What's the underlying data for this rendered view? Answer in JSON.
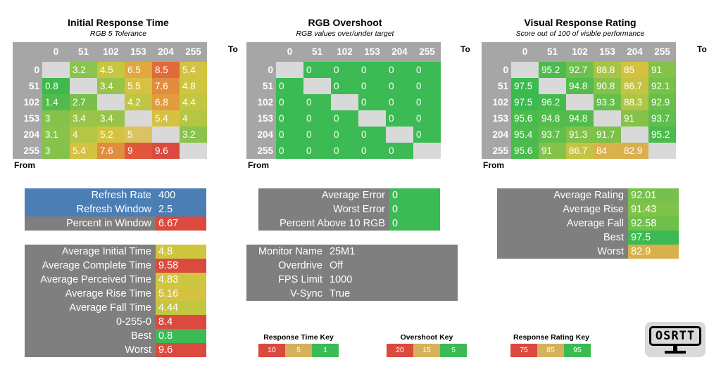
{
  "sections": [
    {
      "title": "Initial Response Time",
      "subtitle": "RGB 5 Tolerance",
      "headers": [
        "0",
        "51",
        "102",
        "153",
        "204",
        "255"
      ],
      "rows": [
        {
          "label": "0",
          "cells": [
            {
              "v": "",
              "c": "#d9d9d9"
            },
            {
              "v": "3.2",
              "c": "#8ac34d"
            },
            {
              "v": "4.5",
              "c": "#c8c63f"
            },
            {
              "v": "6.5",
              "c": "#e0a83e"
            },
            {
              "v": "8.5",
              "c": "#e06a3c"
            },
            {
              "v": "5.4",
              "c": "#d5c240"
            }
          ]
        },
        {
          "label": "51",
          "cells": [
            {
              "v": "0.8",
              "c": "#3fb84e"
            },
            {
              "v": "",
              "c": "#d9d9d9"
            },
            {
              "v": "3.4",
              "c": "#98c449"
            },
            {
              "v": "5.5",
              "c": "#d8c041"
            },
            {
              "v": "7.6",
              "c": "#e08d3f"
            },
            {
              "v": "4.8",
              "c": "#cfc640"
            }
          ]
        },
        {
          "label": "102",
          "cells": [
            {
              "v": "1.4",
              "c": "#52bb4d"
            },
            {
              "v": "2.7",
              "c": "#78c04c"
            },
            {
              "v": "",
              "c": "#d9d9d9"
            },
            {
              "v": "4.2",
              "c": "#bfc643"
            },
            {
              "v": "6.8",
              "c": "#e09c3f"
            },
            {
              "v": "4.4",
              "c": "#c3c641"
            }
          ]
        },
        {
          "label": "153",
          "cells": [
            {
              "v": "3",
              "c": "#85c24c"
            },
            {
              "v": "3.4",
              "c": "#98c449"
            },
            {
              "v": "3.4",
              "c": "#98c449"
            },
            {
              "v": "",
              "c": "#d9d9d9"
            },
            {
              "v": "5.4",
              "c": "#d5c240"
            },
            {
              "v": "4",
              "c": "#b5c544"
            }
          ]
        },
        {
          "label": "204",
          "cells": [
            {
              "v": "3.1",
              "c": "#88c34c"
            },
            {
              "v": "4",
              "c": "#b5c544"
            },
            {
              "v": "5.2",
              "c": "#d3c340"
            },
            {
              "v": "5",
              "c": "#dbc262"
            },
            {
              "v": "",
              "c": "#d9d9d9"
            },
            {
              "v": "3.2",
              "c": "#8ac34d"
            }
          ]
        },
        {
          "label": "255",
          "cells": [
            {
              "v": "3",
              "c": "#85c24c"
            },
            {
              "v": "5.4",
              "c": "#d5c240"
            },
            {
              "v": "7.6",
              "c": "#e08d3f"
            },
            {
              "v": "9",
              "c": "#e0573c"
            },
            {
              "v": "9.6",
              "c": "#da4a3e"
            },
            {
              "v": "",
              "c": "#d9d9d9"
            }
          ]
        }
      ]
    },
    {
      "title": "RGB Overshoot",
      "subtitle": "RGB values over/under target",
      "headers": [
        "0",
        "51",
        "102",
        "153",
        "204",
        "255"
      ],
      "rows": [
        {
          "label": "0",
          "cells": [
            {
              "v": "",
              "c": "#d9d9d9"
            },
            {
              "v": "0",
              "c": "#3cba54"
            },
            {
              "v": "0",
              "c": "#3cba54"
            },
            {
              "v": "0",
              "c": "#3cba54"
            },
            {
              "v": "0",
              "c": "#3cba54"
            },
            {
              "v": "0",
              "c": "#3cba54"
            }
          ]
        },
        {
          "label": "51",
          "cells": [
            {
              "v": "0",
              "c": "#3cba54"
            },
            {
              "v": "",
              "c": "#d9d9d9"
            },
            {
              "v": "0",
              "c": "#3cba54"
            },
            {
              "v": "0",
              "c": "#3cba54"
            },
            {
              "v": "0",
              "c": "#3cba54"
            },
            {
              "v": "0",
              "c": "#3cba54"
            }
          ]
        },
        {
          "label": "102",
          "cells": [
            {
              "v": "0",
              "c": "#3cba54"
            },
            {
              "v": "0",
              "c": "#3cba54"
            },
            {
              "v": "",
              "c": "#d9d9d9"
            },
            {
              "v": "0",
              "c": "#3cba54"
            },
            {
              "v": "0",
              "c": "#3cba54"
            },
            {
              "v": "0",
              "c": "#3cba54"
            }
          ]
        },
        {
          "label": "153",
          "cells": [
            {
              "v": "0",
              "c": "#3cba54"
            },
            {
              "v": "0",
              "c": "#3cba54"
            },
            {
              "v": "0",
              "c": "#3cba54"
            },
            {
              "v": "",
              "c": "#d9d9d9"
            },
            {
              "v": "0",
              "c": "#3cba54"
            },
            {
              "v": "0",
              "c": "#3cba54"
            }
          ]
        },
        {
          "label": "204",
          "cells": [
            {
              "v": "0",
              "c": "#3cba54"
            },
            {
              "v": "0",
              "c": "#3cba54"
            },
            {
              "v": "0",
              "c": "#3cba54"
            },
            {
              "v": "0",
              "c": "#3cba54"
            },
            {
              "v": "",
              "c": "#d9d9d9"
            },
            {
              "v": "0",
              "c": "#3cba54"
            }
          ]
        },
        {
          "label": "255",
          "cells": [
            {
              "v": "0",
              "c": "#3cba54"
            },
            {
              "v": "0",
              "c": "#3cba54"
            },
            {
              "v": "0",
              "c": "#3cba54"
            },
            {
              "v": "0",
              "c": "#3cba54"
            },
            {
              "v": "0",
              "c": "#3cba54"
            },
            {
              "v": "",
              "c": "#d9d9d9"
            }
          ]
        }
      ]
    },
    {
      "title": "Visual Response Rating",
      "subtitle": "Score out of 100 of visible performance",
      "headers": [
        "0",
        "51",
        "102",
        "153",
        "204",
        "255"
      ],
      "rows": [
        {
          "label": "0",
          "cells": [
            {
              "v": "",
              "c": "#d9d9d9"
            },
            {
              "v": "95.2",
              "c": "#4cbb4c"
            },
            {
              "v": "92.7",
              "c": "#6cc04b"
            },
            {
              "v": "88.8",
              "c": "#a8c446"
            },
            {
              "v": "85",
              "c": "#d4c140"
            },
            {
              "v": "91",
              "c": "#84c24a"
            }
          ]
        },
        {
          "label": "51",
          "cells": [
            {
              "v": "97.5",
              "c": "#3cb94f"
            },
            {
              "v": "",
              "c": "#d9d9d9"
            },
            {
              "v": "94.8",
              "c": "#52bc4c"
            },
            {
              "v": "90.8",
              "c": "#86c24a"
            },
            {
              "v": "86.7",
              "c": "#c4c443"
            },
            {
              "v": "92.1",
              "c": "#76c14b"
            }
          ]
        },
        {
          "label": "102",
          "cells": [
            {
              "v": "97.5",
              "c": "#3cb94f"
            },
            {
              "v": "96.2",
              "c": "#45ba4d"
            },
            {
              "v": "",
              "c": "#d9d9d9"
            },
            {
              "v": "93.3",
              "c": "#66bf4b"
            },
            {
              "v": "88.3",
              "c": "#aec545"
            },
            {
              "v": "92.9",
              "c": "#6abf4b"
            }
          ]
        },
        {
          "label": "153",
          "cells": [
            {
              "v": "95.6",
              "c": "#4abb4c"
            },
            {
              "v": "94.8",
              "c": "#52bc4c"
            },
            {
              "v": "94.8",
              "c": "#52bc4c"
            },
            {
              "v": "",
              "c": "#d9d9d9"
            },
            {
              "v": "91",
              "c": "#84c24a"
            },
            {
              "v": "93.7",
              "c": "#5fbe4c"
            }
          ]
        },
        {
          "label": "204",
          "cells": [
            {
              "v": "95.4",
              "c": "#4bbb4c"
            },
            {
              "v": "93.7",
              "c": "#5fbe4c"
            },
            {
              "v": "91.3",
              "c": "#80c24a"
            },
            {
              "v": "91.7",
              "c": "#7bc14a"
            },
            {
              "v": "",
              "c": "#d9d9d9"
            },
            {
              "v": "95.2",
              "c": "#4cbb4c"
            }
          ]
        },
        {
          "label": "255",
          "cells": [
            {
              "v": "95.6",
              "c": "#4abb4c"
            },
            {
              "v": "91",
              "c": "#84c24a"
            },
            {
              "v": "86.7",
              "c": "#c4c443"
            },
            {
              "v": "84",
              "c": "#dab24a"
            },
            {
              "v": "82.9",
              "c": "#d9b04b"
            },
            {
              "v": "",
              "c": "#d9d9d9"
            }
          ]
        }
      ]
    }
  ],
  "axis": {
    "to": "To",
    "from": "From"
  },
  "refresh_panel": [
    {
      "label": "Refresh Rate",
      "value": "400",
      "lbg": "#4a7eb4",
      "vbg": "#4a7eb4"
    },
    {
      "label": "Refresh Window",
      "value": "2.5",
      "lbg": "#4a7eb4",
      "vbg": "#4a7eb4"
    },
    {
      "label": "Percent in Window",
      "value": "6.67",
      "lbg": "#7f7f7f",
      "vbg": "#da4a3e"
    }
  ],
  "time_panel": [
    {
      "label": "Average Initial Time",
      "value": "4.8",
      "vbg": "#cfc640"
    },
    {
      "label": "Average Complete Time",
      "value": "9.58",
      "vbg": "#da4a3e"
    },
    {
      "label": "Average Perceived Time",
      "value": "4.83",
      "vbg": "#cfc640"
    },
    {
      "label": "Average Rise Time",
      "value": "5.16",
      "vbg": "#d3c340"
    },
    {
      "label": "Average Fall Time",
      "value": "4.44",
      "vbg": "#c3c641"
    },
    {
      "label": "0-255-0",
      "value": "8.4",
      "vbg": "#da4a3e"
    },
    {
      "label": "Best",
      "value": "0.8",
      "vbg": "#3cba54"
    },
    {
      "label": "Worst",
      "value": "9.6",
      "vbg": "#da4a3e"
    }
  ],
  "error_panel": [
    {
      "label": "Average Error",
      "value": "0",
      "vbg": "#3cba54"
    },
    {
      "label": "Worst Error",
      "value": "0",
      "vbg": "#3cba54"
    },
    {
      "label": "Percent Above 10 RGB",
      "value": "0",
      "vbg": "#3cba54"
    }
  ],
  "monitor_panel": [
    {
      "label": "Monitor Name",
      "value": "25M1"
    },
    {
      "label": "Overdrive",
      "value": "Off"
    },
    {
      "label": "FPS Limit",
      "value": "1000"
    },
    {
      "label": "V-Sync",
      "value": "True"
    }
  ],
  "rating_panel": [
    {
      "label": "Average Rating",
      "value": "92.01",
      "vbg": "#76c14b"
    },
    {
      "label": "Average Rise",
      "value": "91.43",
      "vbg": "#7fc24a"
    },
    {
      "label": "Average Fall",
      "value": "92.58",
      "vbg": "#6ec04b"
    },
    {
      "label": "Best",
      "value": "97.5",
      "vbg": "#3cba54"
    },
    {
      "label": "Worst",
      "value": "82.9",
      "vbg": "#d9b04b"
    }
  ],
  "keys": [
    {
      "title": "Response Time Key",
      "items": [
        {
          "t": "10",
          "c": "#da4a3e"
        },
        {
          "t": "5",
          "c": "#d4b15a"
        },
        {
          "t": "1",
          "c": "#3cba54"
        }
      ]
    },
    {
      "title": "Overshoot Key",
      "items": [
        {
          "t": "20",
          "c": "#da4a3e"
        },
        {
          "t": "15",
          "c": "#d4b15a"
        },
        {
          "t": "5",
          "c": "#3cba54"
        }
      ]
    },
    {
      "title": "Response Rating Key",
      "items": [
        {
          "t": "75",
          "c": "#da4a3e"
        },
        {
          "t": "85",
          "c": "#d4b15a"
        },
        {
          "t": "95",
          "c": "#3cba54"
        }
      ]
    }
  ],
  "logo": {
    "text": "OSRTT"
  },
  "colors": {
    "panel_gray": "#7f7f7f",
    "matrix_gray": "#a6a6a6",
    "diag": "#d9d9d9"
  }
}
